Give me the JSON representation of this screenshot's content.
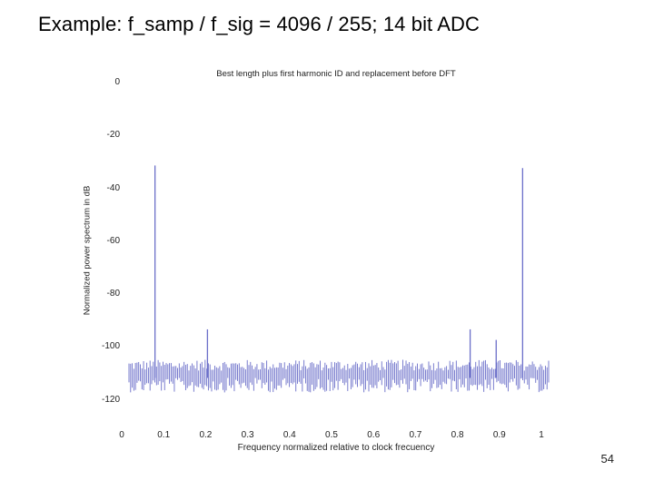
{
  "slide": {
    "title": "Example: f_samp / f_sig = 4096 / 255; 14 bit ADC",
    "page_number": "54"
  },
  "chart_data": {
    "type": "line",
    "title": "Best length plus first harmonic ID and replacement before DFT",
    "xlabel": "Frequency normalized relative to clock frecuency",
    "ylabel": "Normalized power spectrum in dB",
    "xlim": [
      0,
      1
    ],
    "ylim": [
      -125,
      0
    ],
    "xticks": [
      0,
      0.1,
      0.2,
      0.3,
      0.4,
      0.5,
      0.6,
      0.7,
      0.8,
      0.9,
      1
    ],
    "xtick_labels": [
      "0",
      "0.1",
      "0.2",
      "0.3",
      "0.4",
      "0.5",
      "0.6",
      "0.7",
      "0.8",
      "0.9",
      "1"
    ],
    "yticks": [
      0,
      -20,
      -40,
      -60,
      -80,
      -100,
      -120
    ],
    "ytick_labels": [
      "0",
      "-20",
      "-40",
      "-60",
      "-80",
      "-100",
      "-120"
    ],
    "line_color": "#6b6fc9",
    "noise_floor_db": -110,
    "peaks": [
      {
        "x": 0.062,
        "y": -31
      },
      {
        "x": 0.187,
        "y": -93
      },
      {
        "x": 0.813,
        "y": -93
      },
      {
        "x": 0.938,
        "y": -32
      },
      {
        "x": 0.875,
        "y": -97
      }
    ]
  }
}
